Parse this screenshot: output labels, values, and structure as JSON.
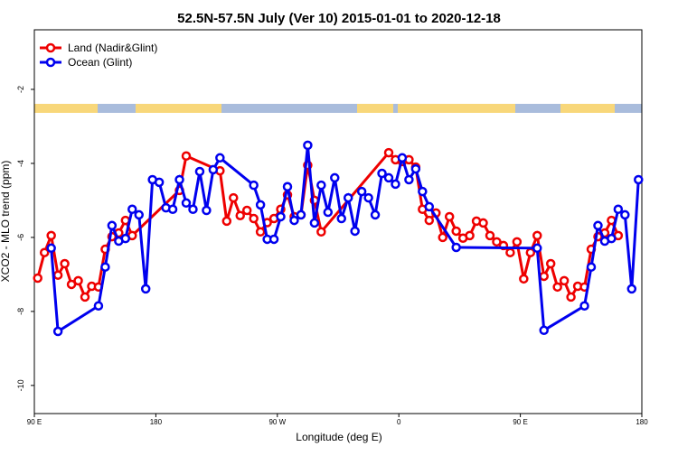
{
  "chart_data": {
    "type": "line",
    "title": "52.5N-57.5N July (Ver 10)   2015-01-01 to 2020-12-18",
    "x_label": "Longitude (deg E)",
    "y_label": "XCO2 - MLO trend (ppm)",
    "xlim": [
      90,
      540
    ],
    "xticks": [
      {
        "value": 90,
        "label": "90 E"
      },
      {
        "value": 180,
        "label": "180"
      },
      {
        "value": 270,
        "label": "90 W"
      },
      {
        "value": 360,
        "label": "0"
      },
      {
        "value": 450,
        "label": "90 E"
      },
      {
        "value": 540,
        "label": "180"
      }
    ],
    "ylim": [
      -10.76,
      -0.39
    ],
    "yticks": [
      -10,
      -8,
      -6,
      -4,
      -2
    ],
    "grid": false,
    "legend": "top-left",
    "series": [
      {
        "name": "Land (Nadir&Glint)",
        "color": "#ee0000",
        "x": [
          92.5,
          97.5,
          102.5,
          107.5,
          112.5,
          117.5,
          122.5,
          127.5,
          132.5,
          137.5,
          142.5,
          147.5,
          152.5,
          157.5,
          162.5,
          197.5,
          202.5,
          227.5,
          232.5,
          237.5,
          242.5,
          247.5,
          252.5,
          257.5,
          262.5,
          267.5,
          272.5,
          277.5,
          282.5,
          287.5,
          292.5,
          297.5,
          302.5,
          352.5,
          357.5,
          362.5,
          367.5,
          372.5,
          377.5,
          382.5,
          387.5,
          392.5,
          397.5,
          402.5,
          407.5,
          412.5,
          417.5,
          422.5,
          427.5,
          432.5,
          437.5,
          442.5,
          447.5,
          452.5,
          457.5,
          462.5,
          467.5,
          472.5,
          477.5,
          482.5,
          487.5,
          492.5,
          497.5,
          502.5,
          507.5,
          512.5,
          517.5,
          522.5
        ],
        "values": [
          -7.1,
          -6.41,
          -5.95,
          -7.02,
          -6.71,
          -7.27,
          -7.17,
          -7.61,
          -7.32,
          -7.34,
          -6.32,
          -5.98,
          -5.88,
          -5.54,
          -5.95,
          -4.73,
          -3.8,
          -4.2,
          -5.56,
          -4.93,
          -5.41,
          -5.27,
          -5.49,
          -5.85,
          -5.6,
          -5.49,
          -5.24,
          -4.85,
          -5.44,
          -5.39,
          -4.05,
          -5.0,
          -5.85,
          -3.71,
          -3.9,
          -3.95,
          -3.9,
          -4.1,
          -5.24,
          -5.54,
          -5.34,
          -6.0,
          -5.44,
          -5.83,
          -6.02,
          -5.95,
          -5.56,
          -5.61,
          -5.95,
          -6.12,
          -6.22,
          -6.41,
          -6.12,
          -7.12,
          -6.41,
          -5.95,
          -7.05,
          -6.71,
          -7.34,
          -7.17,
          -7.61,
          -7.32,
          -7.34,
          -6.32,
          -5.98,
          -5.88,
          -5.54,
          -5.95
        ]
      },
      {
        "name": "Ocean (Glint)",
        "color": "#0000ee",
        "x": [
          102.5,
          107.5,
          137.5,
          142.5,
          147.5,
          152.5,
          157.5,
          162.5,
          167.5,
          172.5,
          177.5,
          182.5,
          187.5,
          192.5,
          197.5,
          202.5,
          207.5,
          212.5,
          217.5,
          222.5,
          227.5,
          252.5,
          257.5,
          262.5,
          267.5,
          272.5,
          277.5,
          282.5,
          287.5,
          292.5,
          297.5,
          302.5,
          307.5,
          312.5,
          317.5,
          322.5,
          327.5,
          332.5,
          337.5,
          342.5,
          347.5,
          352.5,
          357.5,
          362.5,
          367.5,
          372.5,
          377.5,
          382.5,
          402.5,
          462.5,
          467.5,
          497.5,
          502.5,
          507.5,
          512.5,
          517.5,
          522.5,
          527.5,
          532.5,
          537.5
        ],
        "values": [
          -6.29,
          -8.54,
          -7.85,
          -6.8,
          -5.68,
          -6.1,
          -6.03,
          -5.24,
          -5.39,
          -7.39,
          -4.44,
          -4.51,
          -5.2,
          -5.24,
          -4.44,
          -5.07,
          -5.24,
          -4.22,
          -5.27,
          -4.17,
          -3.85,
          -4.59,
          -5.12,
          -6.05,
          -6.05,
          -5.44,
          -4.63,
          -5.54,
          -5.39,
          -3.51,
          -5.61,
          -4.59,
          -5.32,
          -4.39,
          -5.49,
          -4.93,
          -5.83,
          -4.76,
          -4.93,
          -5.39,
          -4.27,
          -4.39,
          -4.56,
          -3.85,
          -4.44,
          -4.15,
          -4.76,
          -5.17,
          -6.27,
          -6.29,
          -8.51,
          -7.85,
          -6.8,
          -5.68,
          -6.1,
          -6.03,
          -5.24,
          -5.39,
          -7.39,
          -4.44
        ]
      }
    ]
  }
}
